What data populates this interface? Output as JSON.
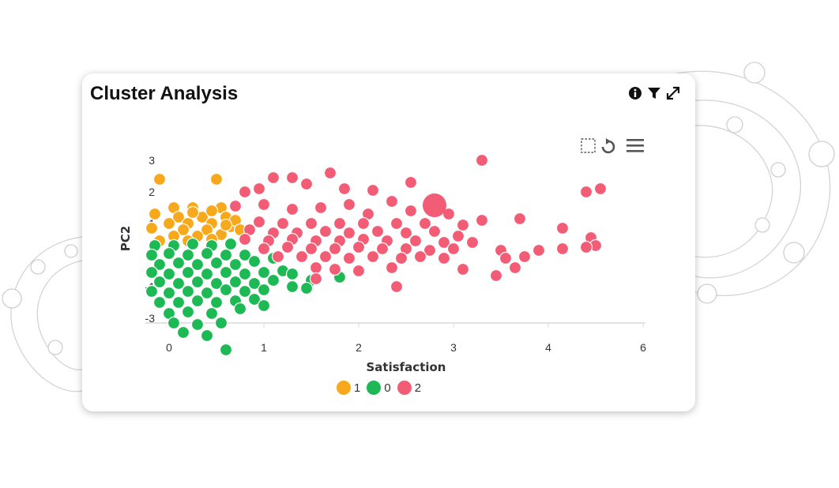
{
  "card": {
    "title": "Cluster Analysis",
    "icons": [
      "info-icon",
      "filter-icon",
      "expand-icon"
    ],
    "toolbar_icons": [
      "selection-box-icon",
      "refresh-icon",
      "menu-icon"
    ]
  },
  "colors": {
    "cluster_1": "#f7a81b",
    "cluster_0": "#1db954",
    "cluster_2": "#f25c74",
    "axis": "#d9d9d9"
  },
  "chart_data": {
    "type": "scatter",
    "title": "",
    "xlabel": "Satisfaction",
    "ylabel": "PC2",
    "xlim": [
      -0.25,
      6
    ],
    "ylim": [
      -3,
      3
    ],
    "xticks": [
      "0",
      "1",
      "2",
      "3",
      "4",
      "6"
    ],
    "yticks": [
      "3",
      "2",
      "1",
      "0",
      "-1",
      "-3"
    ],
    "legend": {
      "position": "bottom-center"
    },
    "grid": false,
    "series": [
      {
        "name": "1",
        "color": "#f7a81b",
        "points": [
          [
            -0.1,
            2.4
          ],
          [
            0.5,
            2.4
          ],
          [
            0.05,
            1.5
          ],
          [
            0.25,
            1.5
          ],
          [
            0.55,
            1.5
          ],
          [
            -0.15,
            1.3
          ],
          [
            0.1,
            1.2
          ],
          [
            0.35,
            1.2
          ],
          [
            0.6,
            1.2
          ],
          [
            0.0,
            1.0
          ],
          [
            0.2,
            1.0
          ],
          [
            0.45,
            1.0
          ],
          [
            -0.2,
            0.85
          ],
          [
            0.15,
            0.8
          ],
          [
            0.4,
            0.8
          ],
          [
            0.65,
            0.9
          ],
          [
            0.05,
            0.6
          ],
          [
            0.3,
            0.6
          ],
          [
            0.55,
            0.65
          ],
          [
            -0.1,
            0.45
          ],
          [
            0.2,
            0.45
          ],
          [
            0.45,
            0.5
          ],
          [
            0.7,
            1.1
          ],
          [
            0.75,
            0.8
          ],
          [
            0.6,
            0.95
          ],
          [
            0.25,
            1.35
          ],
          [
            0.45,
            1.4
          ]
        ]
      },
      {
        "name": "0",
        "color": "#1db954",
        "points": [
          [
            -0.15,
            0.3
          ],
          [
            0.05,
            0.3
          ],
          [
            0.25,
            0.35
          ],
          [
            0.45,
            0.3
          ],
          [
            0.65,
            0.35
          ],
          [
            -0.2,
            0.0
          ],
          [
            0.0,
            0.05
          ],
          [
            0.2,
            0.0
          ],
          [
            0.4,
            0.05
          ],
          [
            0.6,
            0.0
          ],
          [
            0.8,
            0.0
          ],
          [
            -0.1,
            -0.3
          ],
          [
            0.1,
            -0.25
          ],
          [
            0.3,
            -0.3
          ],
          [
            0.5,
            -0.25
          ],
          [
            0.7,
            -0.3
          ],
          [
            0.9,
            -0.2
          ],
          [
            1.1,
            -0.1
          ],
          [
            -0.2,
            -0.55
          ],
          [
            0.0,
            -0.6
          ],
          [
            0.2,
            -0.55
          ],
          [
            0.4,
            -0.6
          ],
          [
            0.6,
            -0.55
          ],
          [
            0.8,
            -0.6
          ],
          [
            1.0,
            -0.55
          ],
          [
            1.2,
            -0.5
          ],
          [
            -0.1,
            -0.85
          ],
          [
            0.1,
            -0.9
          ],
          [
            0.3,
            -0.85
          ],
          [
            0.5,
            -0.9
          ],
          [
            0.7,
            -0.85
          ],
          [
            0.9,
            -0.9
          ],
          [
            1.1,
            -0.8
          ],
          [
            1.3,
            -0.6
          ],
          [
            -0.2,
            -1.15
          ],
          [
            0.0,
            -1.2
          ],
          [
            0.2,
            -1.15
          ],
          [
            0.4,
            -1.2
          ],
          [
            0.6,
            -1.1
          ],
          [
            0.8,
            -1.15
          ],
          [
            1.0,
            -1.1
          ],
          [
            1.5,
            -0.8
          ],
          [
            1.8,
            -0.7
          ],
          [
            -0.1,
            -1.5
          ],
          [
            0.1,
            -1.5
          ],
          [
            0.3,
            -1.45
          ],
          [
            0.5,
            -1.5
          ],
          [
            0.7,
            -1.45
          ],
          [
            0.9,
            -1.4
          ],
          [
            1.3,
            -1.0
          ],
          [
            1.45,
            -1.05
          ],
          [
            0.0,
            -1.85
          ],
          [
            0.2,
            -1.8
          ],
          [
            0.45,
            -1.85
          ],
          [
            0.75,
            -1.7
          ],
          [
            1.0,
            -1.6
          ],
          [
            0.05,
            -2.15
          ],
          [
            0.3,
            -2.2
          ],
          [
            0.55,
            -2.15
          ],
          [
            0.15,
            -2.45
          ],
          [
            0.4,
            -2.55
          ],
          [
            0.6,
            -3.0
          ]
        ]
      },
      {
        "name": "2",
        "color": "#f25c74",
        "points": [
          [
            3.3,
            3.0
          ],
          [
            1.7,
            2.6
          ],
          [
            1.1,
            2.45
          ],
          [
            1.3,
            2.45
          ],
          [
            2.55,
            2.3
          ],
          [
            0.8,
            2.0
          ],
          [
            0.95,
            2.1
          ],
          [
            1.45,
            2.25
          ],
          [
            1.85,
            2.1
          ],
          [
            2.15,
            2.05
          ],
          [
            4.4,
            2.0
          ],
          [
            4.55,
            2.1
          ],
          [
            2.35,
            1.7
          ],
          [
            2.75,
            1.55
          ],
          [
            0.7,
            1.55
          ],
          [
            1.0,
            1.6
          ],
          [
            1.3,
            1.45
          ],
          [
            1.6,
            1.5
          ],
          [
            1.9,
            1.6
          ],
          [
            2.1,
            1.3
          ],
          [
            2.55,
            1.4
          ],
          [
            2.95,
            1.3
          ],
          [
            3.3,
            1.1
          ],
          [
            3.7,
            1.15
          ],
          [
            0.95,
            1.05
          ],
          [
            1.2,
            1.0
          ],
          [
            1.5,
            1.0
          ],
          [
            1.8,
            1.0
          ],
          [
            2.05,
            1.0
          ],
          [
            2.4,
            1.0
          ],
          [
            2.7,
            1.0
          ],
          [
            3.1,
            0.95
          ],
          [
            0.85,
            0.8
          ],
          [
            1.1,
            0.7
          ],
          [
            1.35,
            0.7
          ],
          [
            1.65,
            0.75
          ],
          [
            1.9,
            0.7
          ],
          [
            2.2,
            0.75
          ],
          [
            2.5,
            0.7
          ],
          [
            2.8,
            0.75
          ],
          [
            3.05,
            0.6
          ],
          [
            4.15,
            0.85
          ],
          [
            0.8,
            0.5
          ],
          [
            1.05,
            0.45
          ],
          [
            1.3,
            0.5
          ],
          [
            1.55,
            0.45
          ],
          [
            1.8,
            0.45
          ],
          [
            2.05,
            0.5
          ],
          [
            2.3,
            0.45
          ],
          [
            2.6,
            0.45
          ],
          [
            2.9,
            0.4
          ],
          [
            3.2,
            0.4
          ],
          [
            4.45,
            0.55
          ],
          [
            1.0,
            0.2
          ],
          [
            1.25,
            0.25
          ],
          [
            1.5,
            0.2
          ],
          [
            1.75,
            0.2
          ],
          [
            2.0,
            0.25
          ],
          [
            2.25,
            0.2
          ],
          [
            2.5,
            0.2
          ],
          [
            2.75,
            0.15
          ],
          [
            3.0,
            0.2
          ],
          [
            3.5,
            0.15
          ],
          [
            3.9,
            0.15
          ],
          [
            4.15,
            0.2
          ],
          [
            4.5,
            0.3
          ],
          [
            4.4,
            0.25
          ],
          [
            1.15,
            -0.05
          ],
          [
            1.4,
            -0.05
          ],
          [
            1.65,
            -0.05
          ],
          [
            1.9,
            -0.1
          ],
          [
            2.15,
            -0.05
          ],
          [
            2.45,
            -0.1
          ],
          [
            2.65,
            -0.05
          ],
          [
            2.9,
            -0.1
          ],
          [
            3.55,
            -0.1
          ],
          [
            3.75,
            -0.05
          ],
          [
            1.55,
            -0.4
          ],
          [
            1.75,
            -0.45
          ],
          [
            2.0,
            -0.5
          ],
          [
            2.35,
            -0.4
          ],
          [
            3.1,
            -0.45
          ],
          [
            3.45,
            -0.65
          ],
          [
            3.65,
            -0.4
          ],
          [
            1.55,
            -0.75
          ],
          [
            2.4,
            -1.0
          ],
          [
            2.8,
            1.5
          ]
        ]
      }
    ],
    "highlight_point": {
      "series": "2",
      "x": 2.8,
      "y": 1.5
    }
  },
  "legend": {
    "items": [
      {
        "label": "1"
      },
      {
        "label": "0"
      },
      {
        "label": "2"
      }
    ]
  }
}
